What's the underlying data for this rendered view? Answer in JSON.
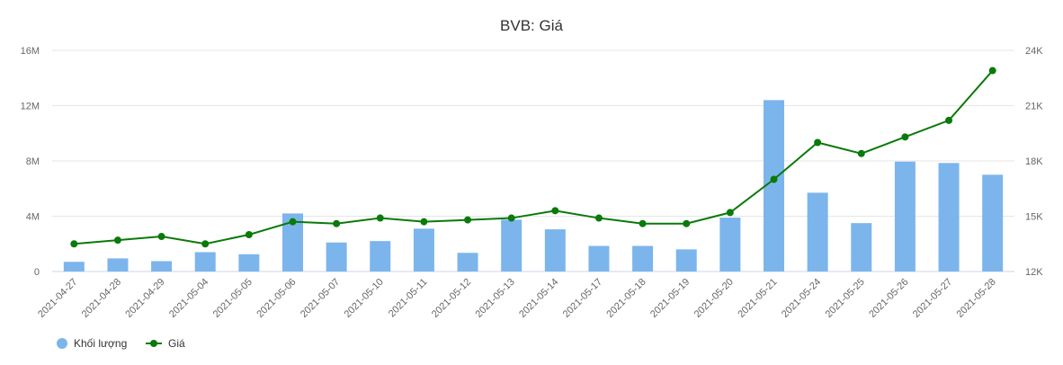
{
  "chart_data": {
    "type": "bar",
    "title": "BVB: Giá",
    "categories": [
      "2021-04-27",
      "2021-04-28",
      "2021-04-29",
      "2021-05-04",
      "2021-05-05",
      "2021-05-06",
      "2021-05-07",
      "2021-05-10",
      "2021-05-11",
      "2021-05-12",
      "2021-05-13",
      "2021-05-14",
      "2021-05-17",
      "2021-05-18",
      "2021-05-19",
      "2021-05-20",
      "2021-05-21",
      "2021-05-24",
      "2021-05-25",
      "2021-05-26",
      "2021-05-27",
      "2021-05-28"
    ],
    "series": [
      {
        "name": "Khối lượng",
        "type": "bar",
        "axis": "left",
        "color": "#7cb5ec",
        "values": [
          700000,
          950000,
          750000,
          1400000,
          1250000,
          4200000,
          2100000,
          2200000,
          3100000,
          1350000,
          3750000,
          3050000,
          1850000,
          1850000,
          1600000,
          3900000,
          12400000,
          5700000,
          3500000,
          7950000,
          7850000,
          7000000
        ]
      },
      {
        "name": "Giá",
        "type": "line",
        "axis": "right",
        "color": "#0a7a0a",
        "values": [
          13500,
          13700,
          13900,
          13500,
          14000,
          14700,
          14600,
          14900,
          14700,
          14800,
          14900,
          15300,
          14900,
          14600,
          14600,
          15200,
          17000,
          19000,
          18400,
          19300,
          20200,
          22900
        ]
      }
    ],
    "y_left": {
      "ylim": [
        0,
        16000000
      ],
      "ticks": [
        "0",
        "4M",
        "8M",
        "12M",
        "16M"
      ],
      "tick_values": [
        0,
        4000000,
        8000000,
        12000000,
        16000000
      ]
    },
    "y_right": {
      "ylim": [
        12000,
        24000
      ],
      "ticks": [
        "12K",
        "15K",
        "18K",
        "21K",
        "24K"
      ],
      "tick_values": [
        12000,
        15000,
        18000,
        21000,
        24000
      ]
    },
    "grid": true,
    "legend_position": "bottom-left",
    "gridline_color": "#e6e6e6"
  }
}
